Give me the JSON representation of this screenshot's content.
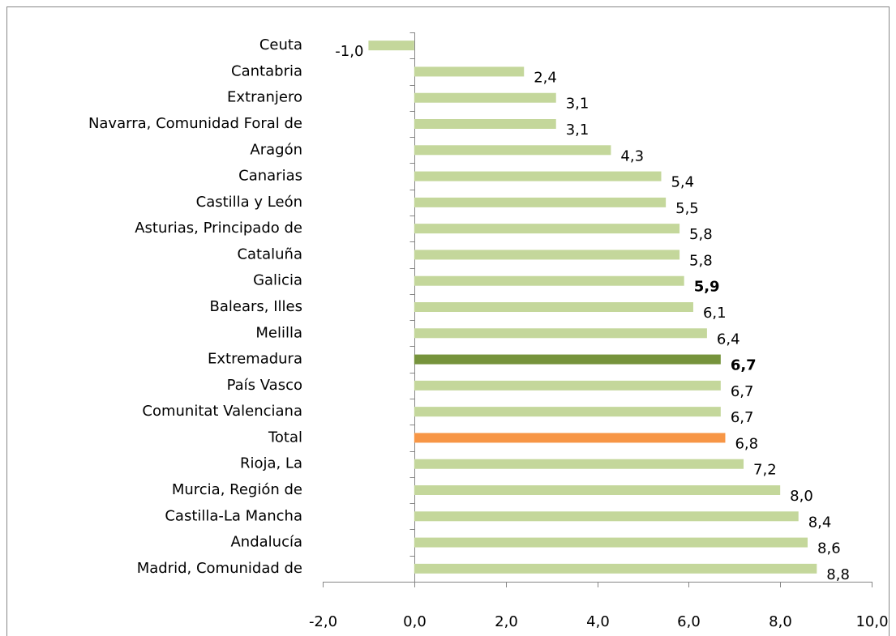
{
  "chart_data": {
    "type": "bar",
    "orientation": "horizontal",
    "categories": [
      "Ceuta",
      "Cantabria",
      "Extranjero",
      "Navarra, Comunidad  Foral de",
      "Aragón",
      "Canarias",
      "Castilla y León",
      "Asturias, Principado de",
      "Cataluña",
      "Galicia",
      "Balears, Illes",
      "Melilla",
      "Extremadura",
      "País Vasco",
      "Comunitat Valenciana",
      "Total",
      "Rioja, La",
      "Murcia, Región de",
      "Castilla-La Mancha",
      "Andalucía",
      "Madrid, Comunidad de"
    ],
    "values": [
      -1.0,
      2.4,
      3.1,
      3.1,
      4.3,
      5.4,
      5.5,
      5.8,
      5.8,
      5.9,
      6.1,
      6.4,
      6.7,
      6.7,
      6.7,
      6.8,
      7.2,
      8.0,
      8.4,
      8.6,
      8.8
    ],
    "value_labels": [
      "-1,0",
      "2,4",
      "3,1",
      "3,1",
      "4,3",
      "5,4",
      "5,5",
      "5,8",
      "5,8",
      "5,9",
      "6,1",
      "6,4",
      "6,7",
      "6,7",
      "6,7",
      "6,8",
      "7,2",
      "8,0",
      "8,4",
      "8,6",
      "8,8"
    ],
    "colors": [
      "#c4d79b",
      "#c4d79b",
      "#c4d79b",
      "#c4d79b",
      "#c4d79b",
      "#c4d79b",
      "#c4d79b",
      "#c4d79b",
      "#c4d79b",
      "#c4d79b",
      "#c4d79b",
      "#c4d79b",
      "#76933c",
      "#c4d79b",
      "#c4d79b",
      "#f79646",
      "#c4d79b",
      "#c4d79b",
      "#c4d79b",
      "#c4d79b",
      "#c4d79b"
    ],
    "bold_value_labels": [
      false,
      false,
      false,
      false,
      false,
      false,
      false,
      false,
      false,
      true,
      false,
      false,
      true,
      false,
      false,
      false,
      false,
      false,
      false,
      false,
      false
    ],
    "xlim": [
      -2,
      10
    ],
    "xticks": [
      {
        "value": -2,
        "label": "-2,0"
      },
      {
        "value": 0,
        "label": "0,0"
      },
      {
        "value": 2,
        "label": "2,0"
      },
      {
        "value": 4,
        "label": "4,0"
      },
      {
        "value": 6,
        "label": "6,0"
      },
      {
        "value": 8,
        "label": "8,0"
      },
      {
        "value": 10,
        "label": "10,0"
      }
    ],
    "grid": false
  }
}
